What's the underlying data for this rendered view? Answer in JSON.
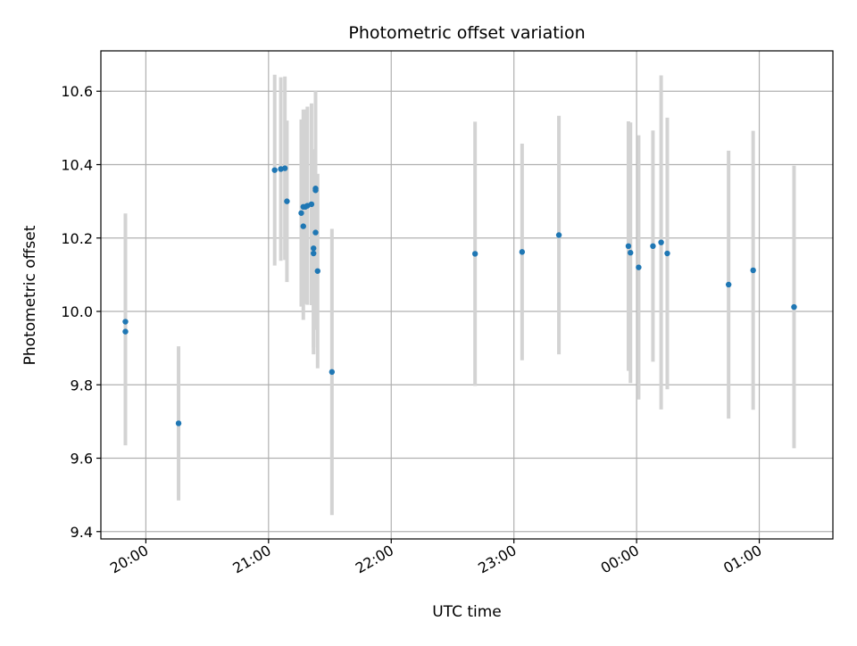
{
  "chart_data": {
    "type": "scatter",
    "title": "Photometric offset variation",
    "xlabel": "UTC time",
    "ylabel": "Photometric offset",
    "x_unit": "UTC time of day (HH:MM); times after midnight are on the following day",
    "xlim": [
      "19:38",
      "01:36"
    ],
    "ylim": [
      9.38,
      10.71
    ],
    "x_ticks": [
      "20:00",
      "21:00",
      "22:00",
      "23:00",
      "00:00",
      "01:00"
    ],
    "y_ticks": [
      "9.4",
      "9.6",
      "9.8",
      "10.0",
      "10.2",
      "10.4",
      "10.6"
    ],
    "grid": true,
    "colors": {
      "point": "#1f77b4",
      "errorbar": "#d3d3d3",
      "grid": "#b0b0b0"
    },
    "points": [
      {
        "time": "19:50",
        "y": 9.945,
        "err": 0.31
      },
      {
        "time": "19:50",
        "y": 9.972,
        "err": 0.295
      },
      {
        "time": "20:16",
        "y": 9.695,
        "err": 0.21
      },
      {
        "time": "21:03",
        "y": 10.385,
        "err": 0.26
      },
      {
        "time": "21:06",
        "y": 10.388,
        "err": 0.25
      },
      {
        "time": "21:08",
        "y": 10.39,
        "err": 0.25
      },
      {
        "time": "21:09",
        "y": 10.3,
        "err": 0.22
      },
      {
        "time": "21:16",
        "y": 10.268,
        "err": 0.255
      },
      {
        "time": "21:17",
        "y": 10.232,
        "err": 0.255
      },
      {
        "time": "21:17",
        "y": 10.285,
        "err": 0.265
      },
      {
        "time": "21:18",
        "y": 10.285,
        "err": 0.265
      },
      {
        "time": "21:19",
        "y": 10.288,
        "err": 0.27
      },
      {
        "time": "21:21",
        "y": 10.292,
        "err": 0.275
      },
      {
        "time": "21:22",
        "y": 10.158,
        "err": 0.275
      },
      {
        "time": "21:22",
        "y": 10.172,
        "err": 0.27
      },
      {
        "time": "21:23",
        "y": 10.335,
        "err": 0.265
      },
      {
        "time": "21:23",
        "y": 10.33,
        "err": 0.27
      },
      {
        "time": "21:23",
        "y": 10.215,
        "err": 0.265
      },
      {
        "time": "21:24",
        "y": 10.11,
        "err": 0.265
      },
      {
        "time": "21:31",
        "y": 9.835,
        "err": 0.39
      },
      {
        "time": "22:41",
        "y": 10.157,
        "err": 0.36
      },
      {
        "time": "23:04",
        "y": 10.162,
        "err": 0.295
      },
      {
        "time": "23:22",
        "y": 10.208,
        "err": 0.325
      },
      {
        "time": "23:56",
        "y": 10.178,
        "err": 0.34
      },
      {
        "time": "23:57",
        "y": 10.16,
        "err": 0.355
      },
      {
        "time": "00:01",
        "y": 10.12,
        "err": 0.36
      },
      {
        "time": "00:08",
        "y": 10.178,
        "err": 0.315
      },
      {
        "time": "00:12",
        "y": 10.188,
        "err": 0.455
      },
      {
        "time": "00:15",
        "y": 10.158,
        "err": 0.37
      },
      {
        "time": "00:45",
        "y": 10.073,
        "err": 0.365
      },
      {
        "time": "00:57",
        "y": 10.112,
        "err": 0.38
      },
      {
        "time": "01:17",
        "y": 10.012,
        "err": 0.385
      }
    ]
  }
}
